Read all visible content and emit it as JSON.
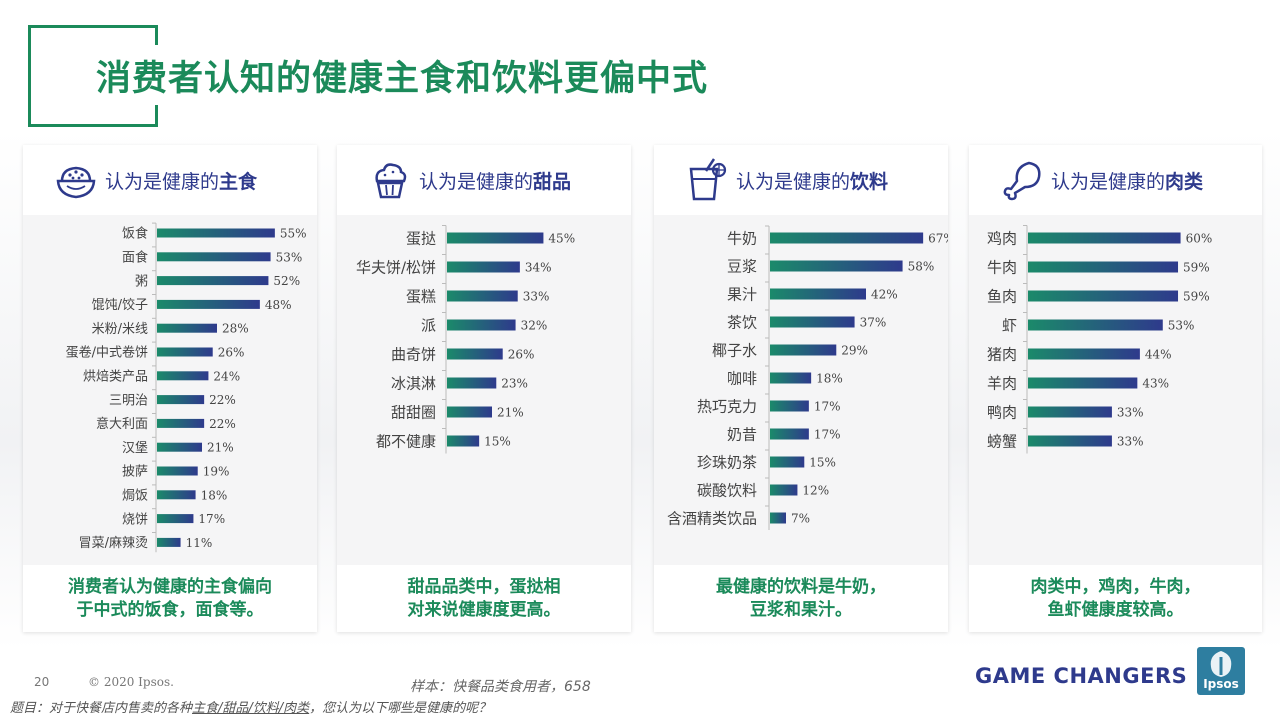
{
  "title": "消费者认知的健康主食和饮料更偏中式",
  "footer": {
    "page_number": "20",
    "copyright": "© 2020 Ipsos.",
    "sample": "样本：快餐品类食用者，658",
    "question_prefix": "题目：对于快餐店内售卖的各种",
    "question_underlined": "主食/甜品/饮料/肉类",
    "question_suffix": "，您认为以下哪些是健康的呢？",
    "brand": "GAME CHANGERS",
    "logo_text": "Ipsos"
  },
  "colors": {
    "title_green": "#1b8a5a",
    "navy": "#2e3a8c",
    "bar_gradient_start": "#1b8a6a",
    "bar_gradient_end": "#2e3a8c"
  },
  "panels": [
    {
      "title_prefix": "认为是健康的",
      "title_bold": "主食",
      "icon": "rice-bowl-icon",
      "summary": "消费者认为健康的主食偏向\n于中式的饭食，面食等。"
    },
    {
      "title_prefix": "认为是健康的",
      "title_bold": "甜品",
      "icon": "cupcake-icon",
      "summary": "甜品品类中，蛋挞相\n对来说健康度更高。"
    },
    {
      "title_prefix": "认为是健康的",
      "title_bold": "饮料",
      "icon": "drink-glass-icon",
      "summary": "最健康的饮料是牛奶，\n豆浆和果汁。"
    },
    {
      "title_prefix": "认为是健康的",
      "title_bold": "肉类",
      "icon": "chicken-leg-icon",
      "summary": "肉类中，鸡肉，牛肉，\n鱼虾健康度较高。"
    }
  ],
  "chart_data": [
    {
      "type": "bar",
      "orientation": "horizontal",
      "categories": [
        "饭食",
        "面食",
        "粥",
        "馄饨/饺子",
        "米粉/米线",
        "蛋卷/中式卷饼",
        "烘焙类产品",
        "三明治",
        "意大利面",
        "汉堡",
        "披萨",
        "焗饭",
        "烧饼",
        "冒菜/麻辣烫"
      ],
      "values": [
        55,
        53,
        52,
        48,
        28,
        26,
        24,
        22,
        22,
        21,
        19,
        18,
        17,
        11
      ],
      "labels": [
        "55%",
        "53%",
        "52%",
        "48%",
        "28%",
        "26%",
        "24%",
        "22%",
        "22%",
        "21%",
        "19%",
        "18%",
        "17%",
        "11%"
      ],
      "xlim": [
        0,
        100
      ]
    },
    {
      "type": "bar",
      "orientation": "horizontal",
      "categories": [
        "蛋挞",
        "华夫饼/松饼",
        "蛋糕",
        "派",
        "曲奇饼",
        "冰淇淋",
        "甜甜圈",
        "都不健康"
      ],
      "values": [
        45,
        34,
        33,
        32,
        26,
        23,
        21,
        15
      ],
      "labels": [
        "45%",
        "34%",
        "33%",
        "32%",
        "26%",
        "23%",
        "21%",
        "15%"
      ],
      "xlim": [
        0,
        100
      ]
    },
    {
      "type": "bar",
      "orientation": "horizontal",
      "categories": [
        "牛奶",
        "豆浆",
        "果汁",
        "茶饮",
        "椰子水",
        "咖啡",
        "热巧克力",
        "奶昔",
        "珍珠奶茶",
        "碳酸饮料",
        "含酒精类饮品"
      ],
      "values": [
        67,
        58,
        42,
        37,
        29,
        18,
        17,
        17,
        15,
        12,
        7
      ],
      "labels": [
        "67%",
        "58%",
        "42%",
        "37%",
        "29%",
        "18%",
        "17%",
        "17%",
        "15%",
        "12%",
        "7%"
      ],
      "xlim": [
        0,
        100
      ]
    },
    {
      "type": "bar",
      "orientation": "horizontal",
      "categories": [
        "鸡肉",
        "牛肉",
        "鱼肉",
        "虾",
        "猪肉",
        "羊肉",
        "鸭肉",
        "螃蟹"
      ],
      "values": [
        60,
        59,
        59,
        53,
        44,
        43,
        33,
        33
      ],
      "labels": [
        "60%",
        "59%",
        "59%",
        "53%",
        "44%",
        "43%",
        "33%",
        "33%"
      ],
      "xlim": [
        0,
        100
      ]
    }
  ]
}
